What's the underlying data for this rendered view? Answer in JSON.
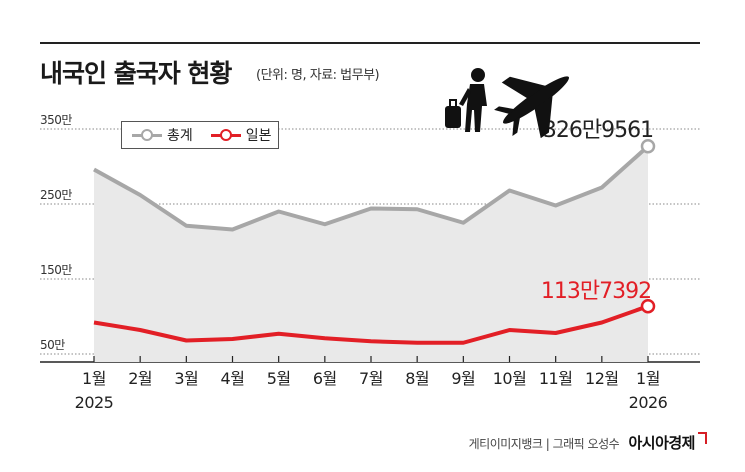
{
  "header": {
    "title": "내국인 출국자 현황",
    "subtitle": "(단위: 명, 자료: 법무부)"
  },
  "legend": {
    "total_label": "총계",
    "japan_label": "일본"
  },
  "callouts": {
    "total_last": "326만9561",
    "japan_last": "113만7392"
  },
  "credit": {
    "text": "게티이미지뱅크 | 그래픽 오성수",
    "brand": "아시아경제"
  },
  "colors": {
    "total_line": "#a7a7a7",
    "total_area": "#e9e9e9",
    "japan_line": "#e21f26",
    "grid": "#888888"
  },
  "icons": [
    "traveler-with-luggage-icon",
    "airplane-icon"
  ],
  "chart_data": {
    "type": "line",
    "title": "내국인 출국자 현황",
    "subtitle": "(단위: 명, 자료: 법무부)",
    "unit": "만",
    "categories": [
      "1월\n2025",
      "2월",
      "3월",
      "4월",
      "5월",
      "6월",
      "7월",
      "8월",
      "9월",
      "10월",
      "11월",
      "12월",
      "1월\n2026"
    ],
    "yticks": [
      "350만",
      "250만",
      "150만",
      "50만"
    ],
    "ytick_values": [
      350,
      250,
      150,
      50
    ],
    "ylim": [
      30,
      370
    ],
    "grid": true,
    "legend_position": "top-left",
    "series": [
      {
        "name": "총계",
        "values": [
          296,
          262,
          221,
          216,
          240,
          223,
          244,
          243,
          225,
          268,
          248,
          272,
          326.9561
        ]
      },
      {
        "name": "일본",
        "values": [
          92,
          82,
          68,
          70,
          77,
          71,
          67,
          65,
          65,
          82,
          78,
          92,
          113.7392
        ]
      }
    ],
    "annotations": [
      "326만9561",
      "113만7392"
    ]
  }
}
